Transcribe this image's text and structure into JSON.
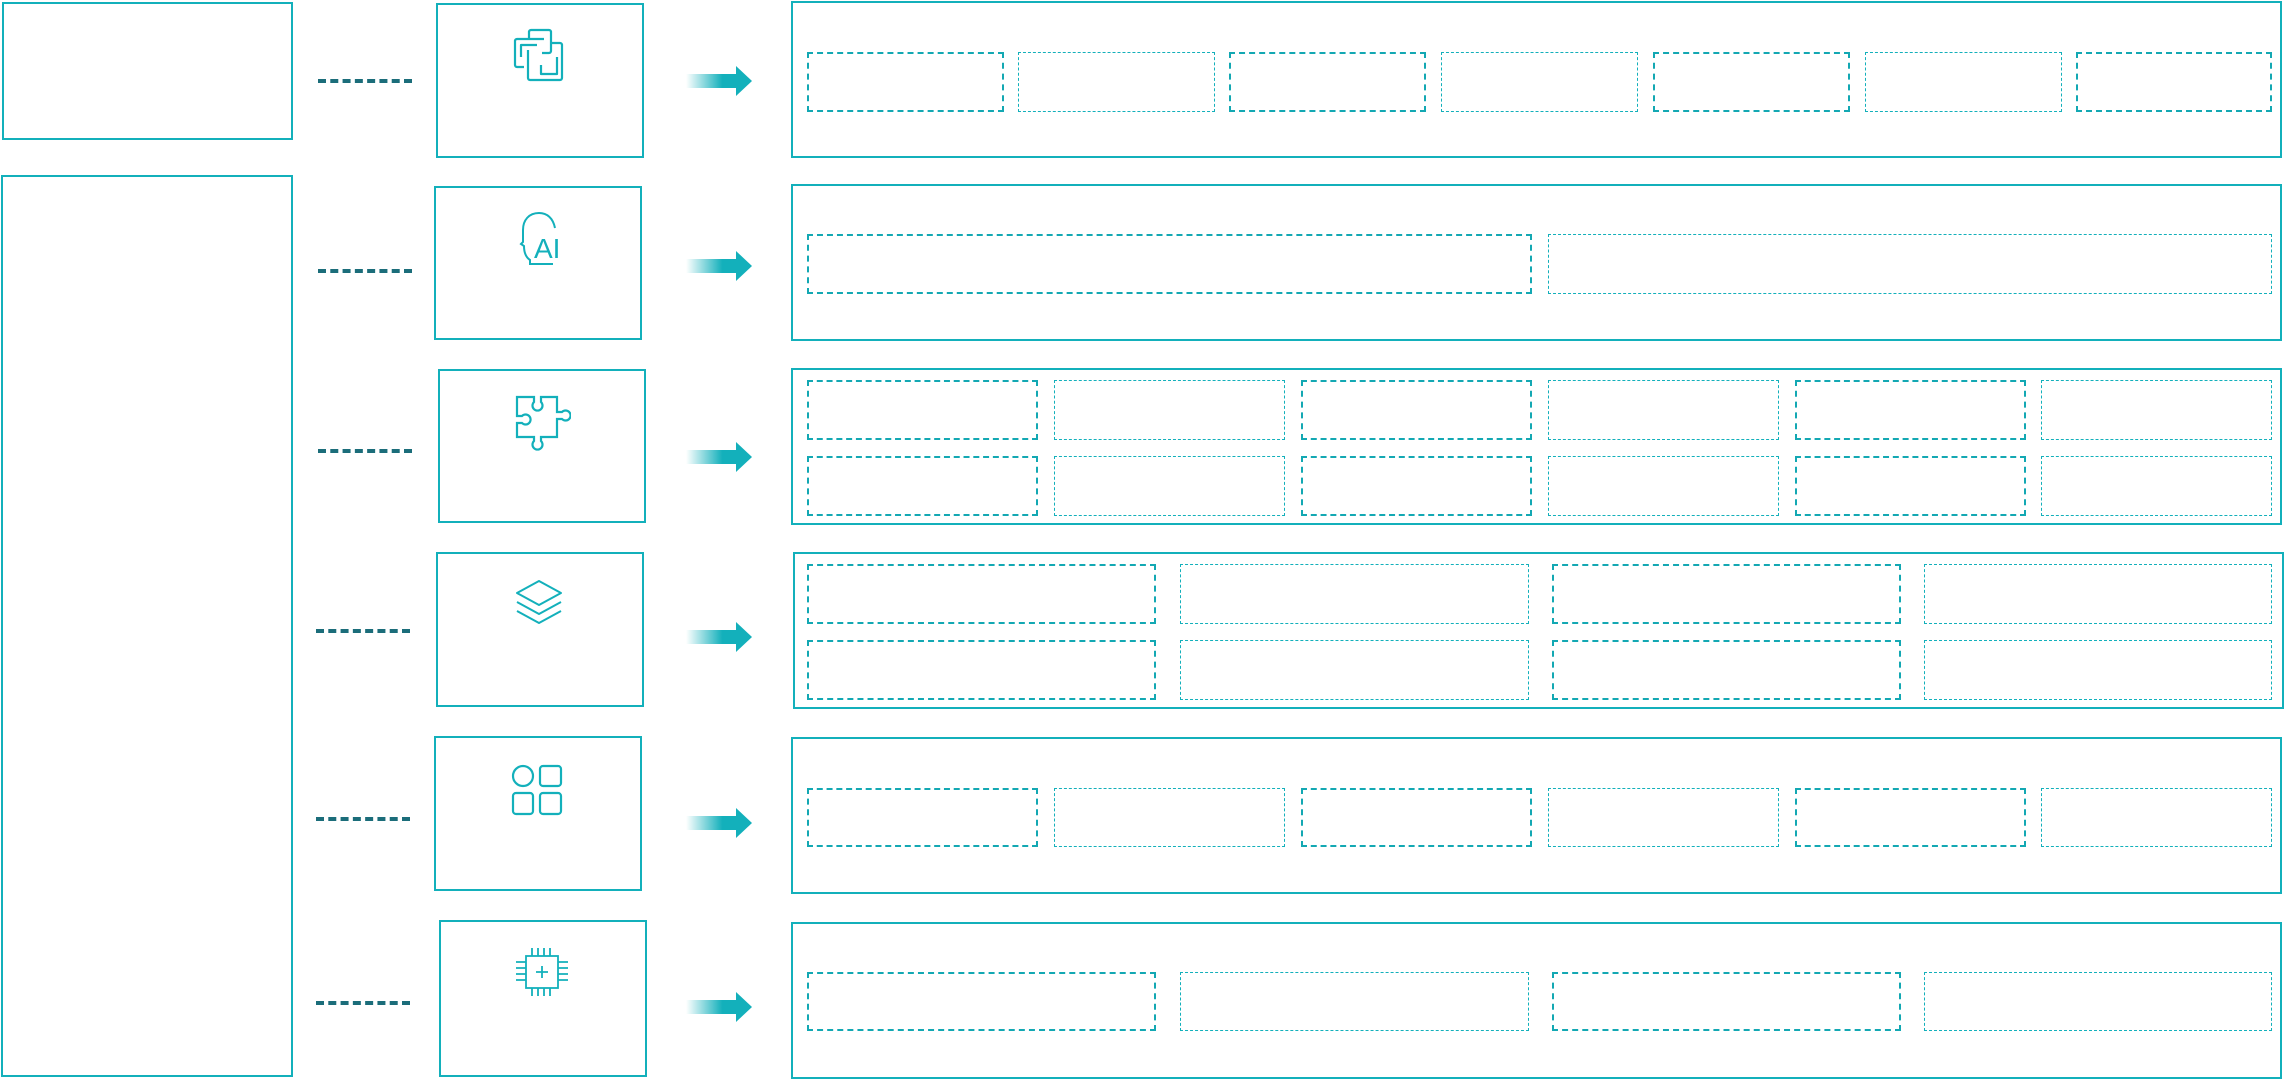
{
  "colors": {
    "accent": "#13b0bb",
    "connector": "#1b6d7a"
  },
  "rows": [
    {
      "icon": "linked-windows-icon"
    },
    {
      "icon": "ai-head-icon",
      "icon_text": "AI"
    },
    {
      "icon": "puzzle-icon"
    },
    {
      "icon": "layers-icon"
    },
    {
      "icon": "apps-grid-icon"
    },
    {
      "icon": "chip-icon"
    }
  ]
}
